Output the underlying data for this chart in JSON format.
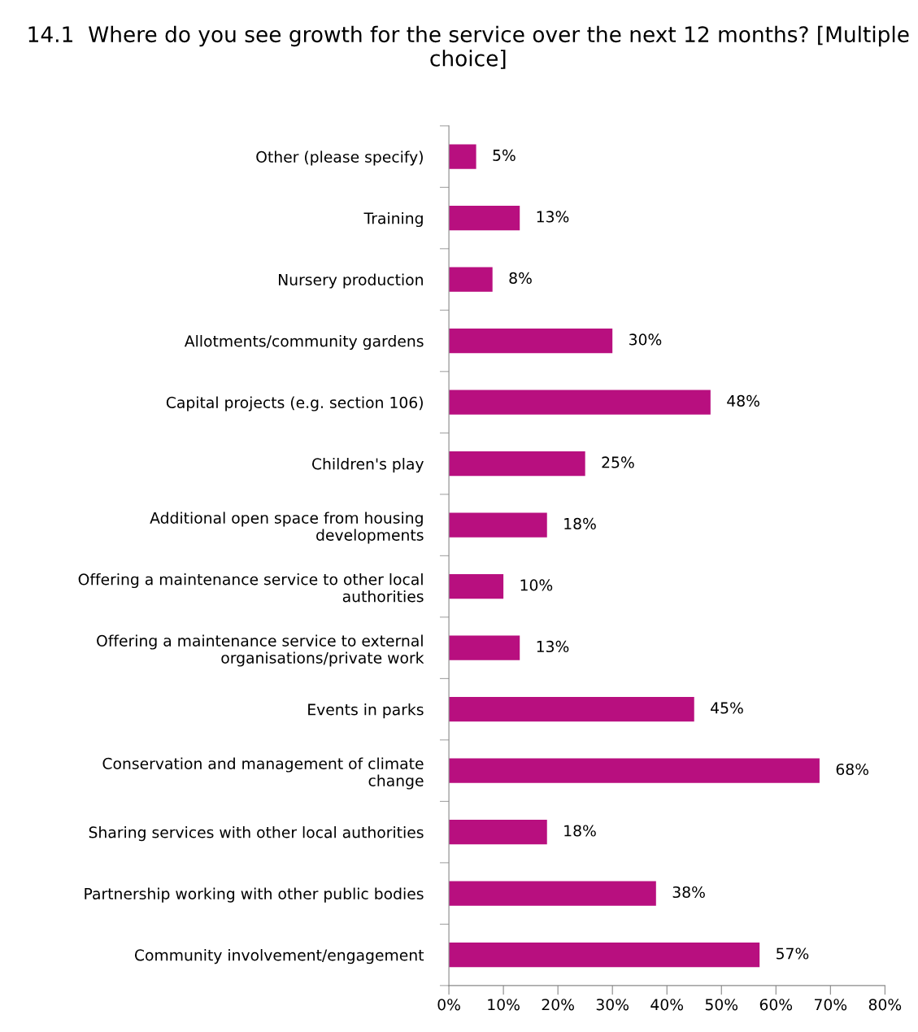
{
  "chart_data": {
    "type": "bar",
    "orientation": "horizontal",
    "title": "14.1  Where do you see growth for the service over the next 12 months? [Multiple choice]",
    "categories": [
      "Other (please specify)",
      "Training",
      "Nursery production",
      "Allotments/community gardens",
      "Capital projects (e.g. section 106)",
      "Children's play",
      "Additional open space from housing\ndevelopments",
      "Offering a maintenance service to other local\nauthorities",
      "Offering a maintenance service to external\norganisations/private work",
      "Events in parks",
      "Conservation and management of climate\nchange",
      "Sharing services with other local authorities",
      "Partnership working with other public bodies",
      "Community involvement/engagement"
    ],
    "values": [
      5,
      13,
      8,
      30,
      48,
      25,
      18,
      10,
      13,
      45,
      68,
      18,
      38,
      57
    ],
    "value_labels": [
      "5%",
      "13%",
      "8%",
      "30%",
      "48%",
      "25%",
      "18%",
      "10%",
      "13%",
      "45%",
      "68%",
      "18%",
      "38%",
      "57%"
    ],
    "color": "#b80f7f",
    "xlim": [
      0,
      80
    ],
    "xticks": [
      {
        "value": 0,
        "label": "0%"
      },
      {
        "value": 10,
        "label": "10%"
      },
      {
        "value": 20,
        "label": "20%"
      },
      {
        "value": 30,
        "label": "30%"
      },
      {
        "value": 40,
        "label": "40%"
      },
      {
        "value": 50,
        "label": "50%"
      },
      {
        "value": 60,
        "label": "60%"
      },
      {
        "value": 70,
        "label": "70%"
      },
      {
        "value": 80,
        "label": "80%"
      }
    ],
    "grid": false,
    "legend": false
  }
}
